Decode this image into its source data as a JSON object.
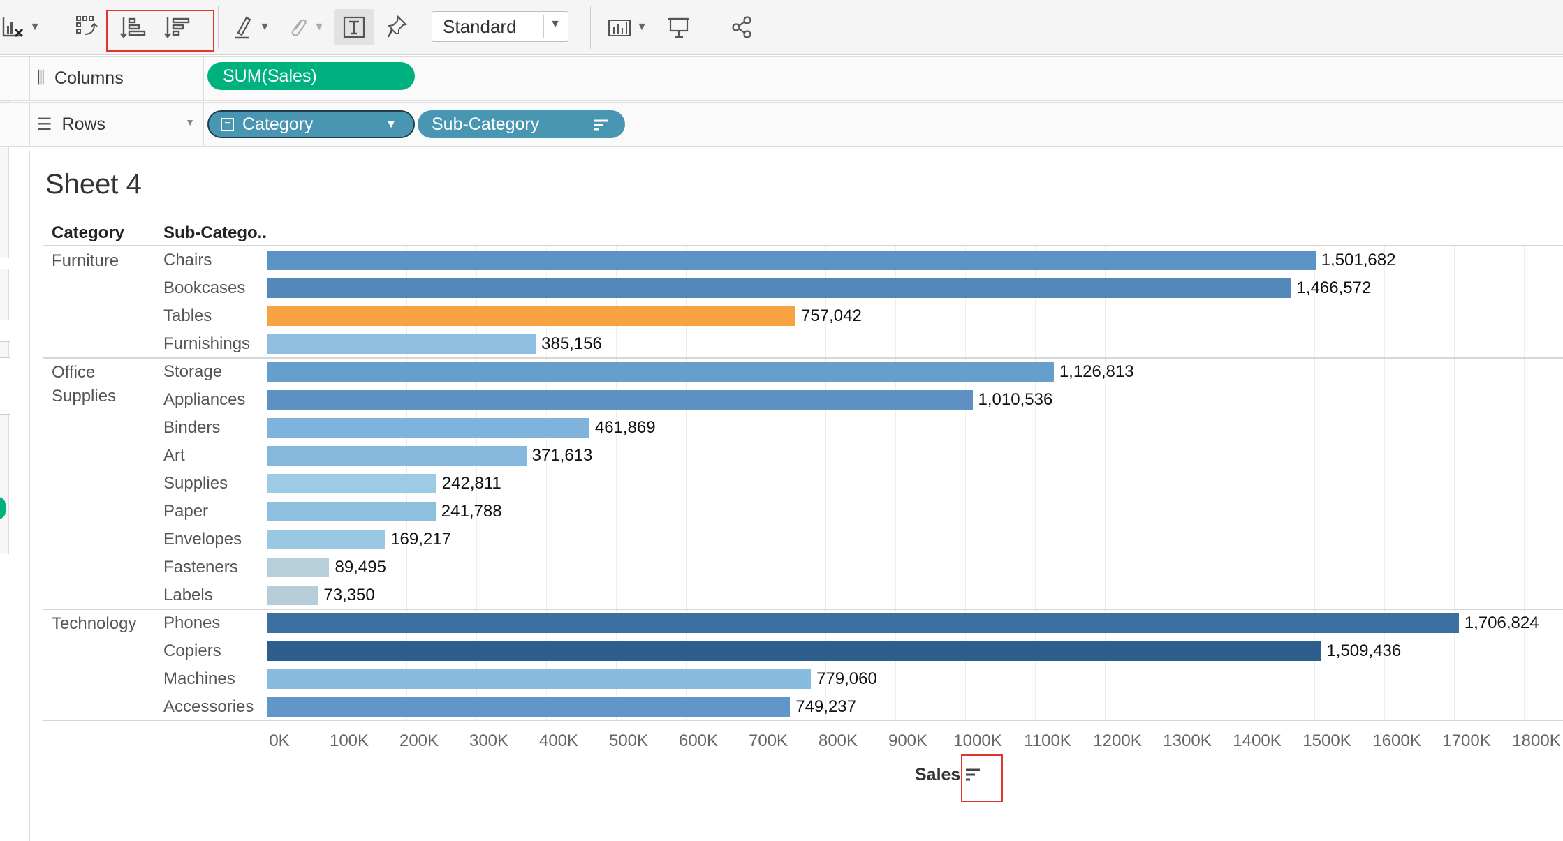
{
  "toolbar": {
    "marks_select_label": "Standard",
    "icons": [
      "clear-sheet-icon",
      "swap-rows-columns-icon",
      "sort-ascending-icon",
      "sort-descending-icon",
      "highlight-icon",
      "group-members-icon",
      "show-mark-labels-icon",
      "fix-axes-icon",
      "show-me-icon",
      "presentation-mode-icon",
      "share-icon"
    ]
  },
  "shelves": {
    "columns_label": "Columns",
    "rows_label": "Rows",
    "columns_pills": [
      "SUM(Sales)"
    ],
    "rows_pills": [
      "Category",
      "Sub-Category"
    ]
  },
  "sheet": {
    "title": "Sheet 4",
    "header_category": "Category",
    "header_subcategory": "Sub-Catego.."
  },
  "colors": {
    "highlight": "#f9a242",
    "pill_measure": "#00b180",
    "pill_dimension": "#4996b2",
    "accent_red": "#e0352b"
  },
  "chart_data": {
    "type": "bar",
    "orientation": "horizontal",
    "xlabel": "Sales",
    "xlim": [
      0,
      1800000
    ],
    "x_ticks": [
      "0K",
      "100K",
      "200K",
      "300K",
      "400K",
      "500K",
      "600K",
      "700K",
      "800K",
      "900K",
      "1000K",
      "1100K",
      "1200K",
      "1300K",
      "1400K",
      "1500K",
      "1600K",
      "1700K",
      "1800K"
    ],
    "groups": [
      {
        "category": "Furniture",
        "display": [
          "Furniture"
        ],
        "items": [
          {
            "sub": "Chairs",
            "value": 1501682,
            "label": "1,501,682",
            "color": "#5a93c4"
          },
          {
            "sub": "Bookcases",
            "value": 1466572,
            "label": "1,466,572",
            "color": "#5388bb"
          },
          {
            "sub": "Tables",
            "value": 757042,
            "label": "757,042",
            "color": "#f9a242"
          },
          {
            "sub": "Furnishings",
            "value": 385156,
            "label": "385,156",
            "color": "#8ebfe0"
          }
        ]
      },
      {
        "category": "Office Supplies",
        "display": [
          "Office",
          "Supplies"
        ],
        "items": [
          {
            "sub": "Storage",
            "value": 1126813,
            "label": "1,126,813",
            "color": "#679fcc"
          },
          {
            "sub": "Appliances",
            "value": 1010536,
            "label": "1,010,536",
            "color": "#5d91c3"
          },
          {
            "sub": "Binders",
            "value": 461869,
            "label": "461,869",
            "color": "#7fb3db"
          },
          {
            "sub": "Art",
            "value": 371613,
            "label": "371,613",
            "color": "#84b8dd"
          },
          {
            "sub": "Supplies",
            "value": 242811,
            "label": "242,811",
            "color": "#9ccbe3"
          },
          {
            "sub": "Paper",
            "value": 241788,
            "label": "241,788",
            "color": "#8dc0df"
          },
          {
            "sub": "Envelopes",
            "value": 169217,
            "label": "169,217",
            "color": "#9ac8e2"
          },
          {
            "sub": "Fasteners",
            "value": 89495,
            "label": "89,495",
            "color": "#b6cfda"
          },
          {
            "sub": "Labels",
            "value": 73350,
            "label": "73,350",
            "color": "#b6cdd9"
          }
        ]
      },
      {
        "category": "Technology",
        "display": [
          "Technology"
        ],
        "items": [
          {
            "sub": "Phones",
            "value": 1706824,
            "label": "1,706,824",
            "color": "#3a6f9f"
          },
          {
            "sub": "Copiers",
            "value": 1509436,
            "label": "1,509,436",
            "color": "#2e5e8b"
          },
          {
            "sub": "Machines",
            "value": 779060,
            "label": "779,060",
            "color": "#87bbdf"
          },
          {
            "sub": "Accessories",
            "value": 749237,
            "label": "749,237",
            "color": "#6197c8"
          }
        ]
      }
    ]
  }
}
